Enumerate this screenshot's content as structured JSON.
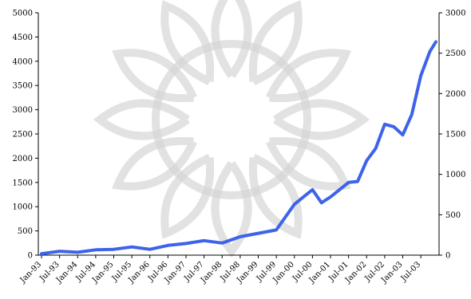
{
  "chart_data": {
    "type": "line",
    "title": "",
    "xlabel": "",
    "ylabel": "",
    "ylim": [
      0,
      5000
    ],
    "y2lim": [
      0,
      3000
    ],
    "grid": false,
    "legend": "none",
    "left_ticks": [
      "0",
      "500",
      "1000",
      "1500",
      "2000",
      "2500",
      "3000",
      "3500",
      "4000",
      "4500",
      "5000"
    ],
    "right_ticks": [
      "0",
      "500",
      "1000",
      "1500",
      "2000",
      "2500",
      "3000"
    ],
    "x_ticks": [
      "Jan-93",
      "Jul-93",
      "Jan-94",
      "Jul-94",
      "Jan-95",
      "Jul-95",
      "Jan-96",
      "Jul-96",
      "Jan-97",
      "Jul-97",
      "Jan-98",
      "Jul-98",
      "Jan-99",
      "Jul-99",
      "Jan-00",
      "Jul-00",
      "Jan-01",
      "Jul-01",
      "Jan-02",
      "Jul-02",
      "Jan-03",
      "Jul-03"
    ],
    "series": [
      {
        "color": "#3d63ea",
        "x": [
          "Jan-93",
          "Jul-93",
          "Jan-94",
          "Jul-94",
          "Jan-95",
          "Jul-95",
          "Jan-96",
          "Jul-96",
          "Jan-97",
          "Jul-97",
          "Jan-98",
          "Jul-98",
          "Jan-99",
          "Jul-99",
          "Jan-00",
          "Apr-00",
          "Jul-00",
          "Oct-00",
          "Jan-01",
          "Apr-01",
          "Jul-01",
          "Oct-01",
          "Jan-02",
          "Apr-02",
          "Jul-02",
          "Oct-02",
          "Jan-03",
          "Apr-03",
          "Jul-03",
          "Oct-03",
          "Dec-03"
        ],
        "values": [
          30,
          80,
          60,
          110,
          120,
          170,
          120,
          200,
          240,
          300,
          250,
          380,
          450,
          520,
          1050,
          1200,
          1350,
          1080,
          1200,
          1350,
          1500,
          1520,
          1950,
          2200,
          2700,
          2650,
          2480,
          2900,
          3700,
          4200,
          4400
        ]
      }
    ]
  },
  "colors": {
    "series": "#3d63ea",
    "watermark": "#d6d6d6",
    "axis": "#000000"
  }
}
